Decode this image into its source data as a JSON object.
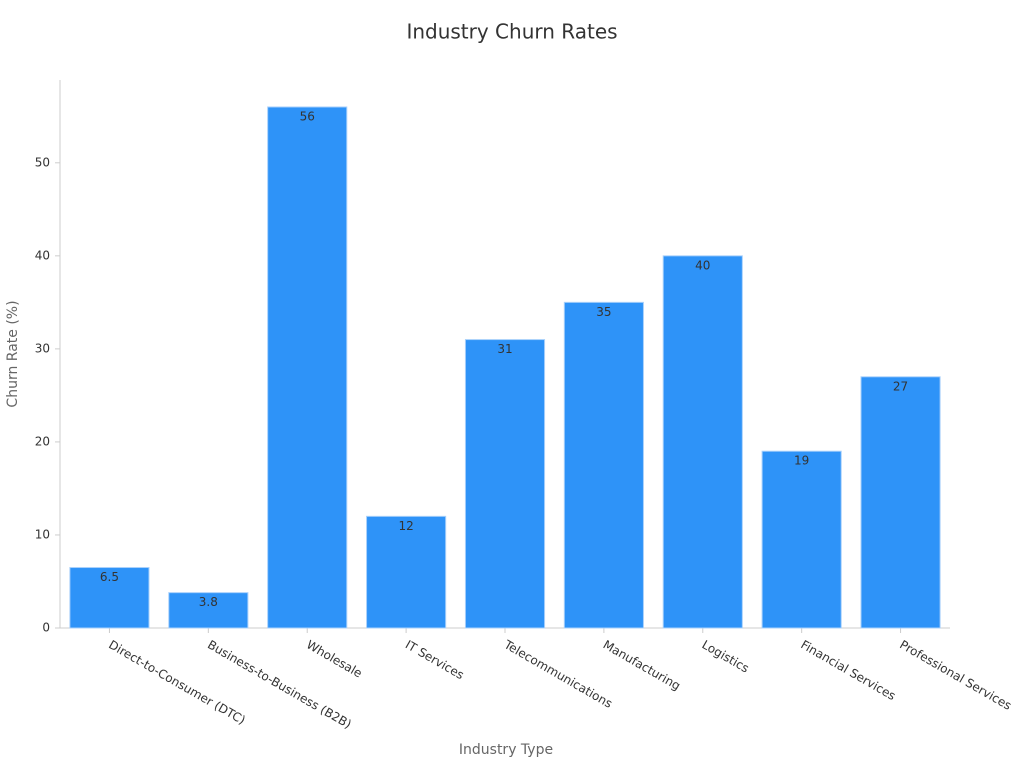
{
  "chart_data": {
    "type": "bar",
    "title": "Industry Churn Rates",
    "x_label": "Industry Type",
    "y_label": "Churn Rate (%)",
    "categories": [
      "Direct-to-Consumer (DTC)",
      "Business-to-Business (B2B)",
      "Wholesale",
      "IT Services",
      "Telecommunications",
      "Manufacturing",
      "Logistics",
      "Financial Services",
      "Professional Services"
    ],
    "values": [
      6.5,
      3.8,
      56,
      12,
      31,
      35,
      40,
      19,
      27
    ],
    "color": "#2e93f8",
    "ylim": [
      0,
      58.9
    ],
    "yticks": [
      0,
      10,
      20,
      30,
      40,
      50
    ],
    "grid": false
  }
}
